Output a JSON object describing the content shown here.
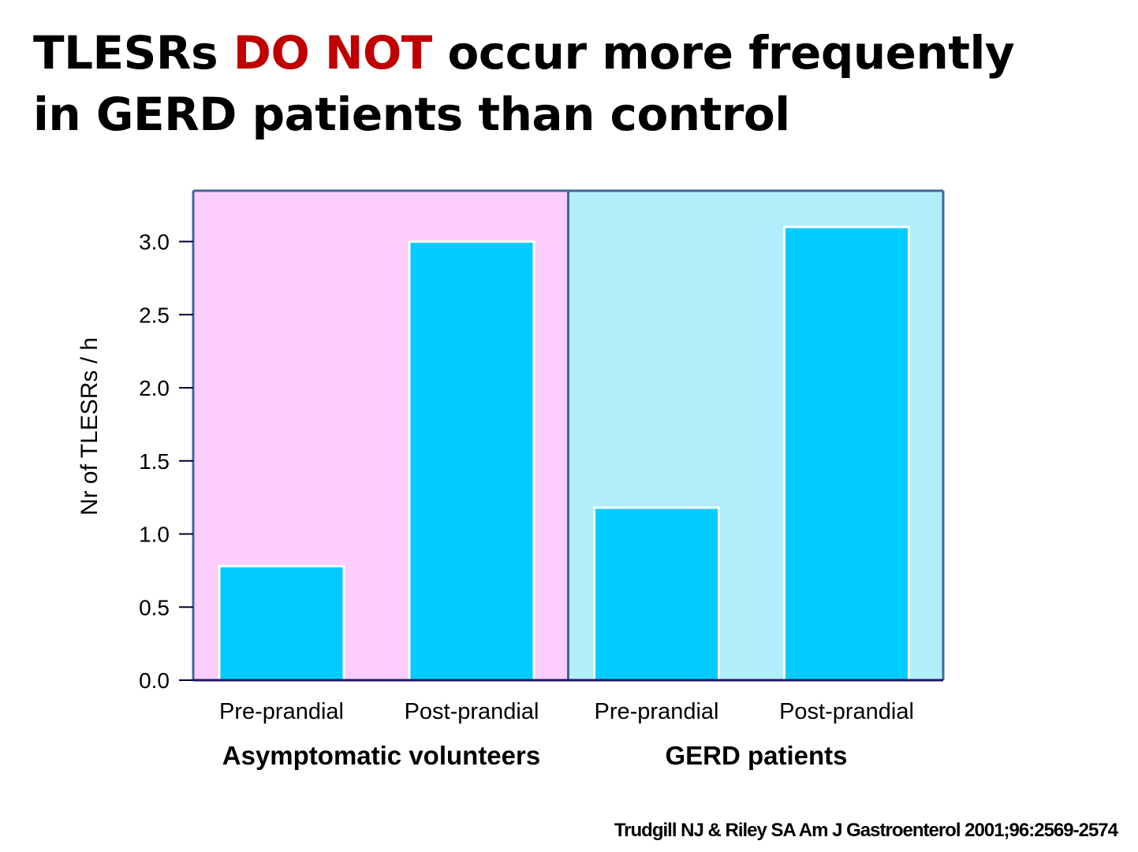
{
  "title": {
    "part1": "TLESRs ",
    "emphasis": "DO NOT",
    "part2": " occur more frequently",
    "line2": "in GERD patients than control",
    "emphasis_color": "#c00000"
  },
  "chart_data": {
    "type": "bar",
    "ylabel": "Nr of TLESRs / h",
    "ylim": [
      0,
      3.35
    ],
    "yticks": [
      "0.0",
      "0.5",
      "1.0",
      "1.5",
      "2.0",
      "2.5",
      "3.0"
    ],
    "groups": [
      {
        "label": "Asymptomatic volunteers",
        "background": "#fdcdfd",
        "categories": [
          "Pre-prandial",
          "Post-prandial"
        ],
        "values": [
          0.78,
          3.0
        ]
      },
      {
        "label": "GERD patients",
        "background": "#b0eefc",
        "categories": [
          "Pre-prandial",
          "Post-prandial"
        ],
        "values": [
          1.18,
          3.1
        ]
      }
    ],
    "bar_color": "#00ccff",
    "bar_edge_color": "#ffffff",
    "frame_color": "#41679a"
  },
  "citation": "Trudgill NJ & Riley SA  Am J Gastroenterol 2001;96:2569-2574"
}
